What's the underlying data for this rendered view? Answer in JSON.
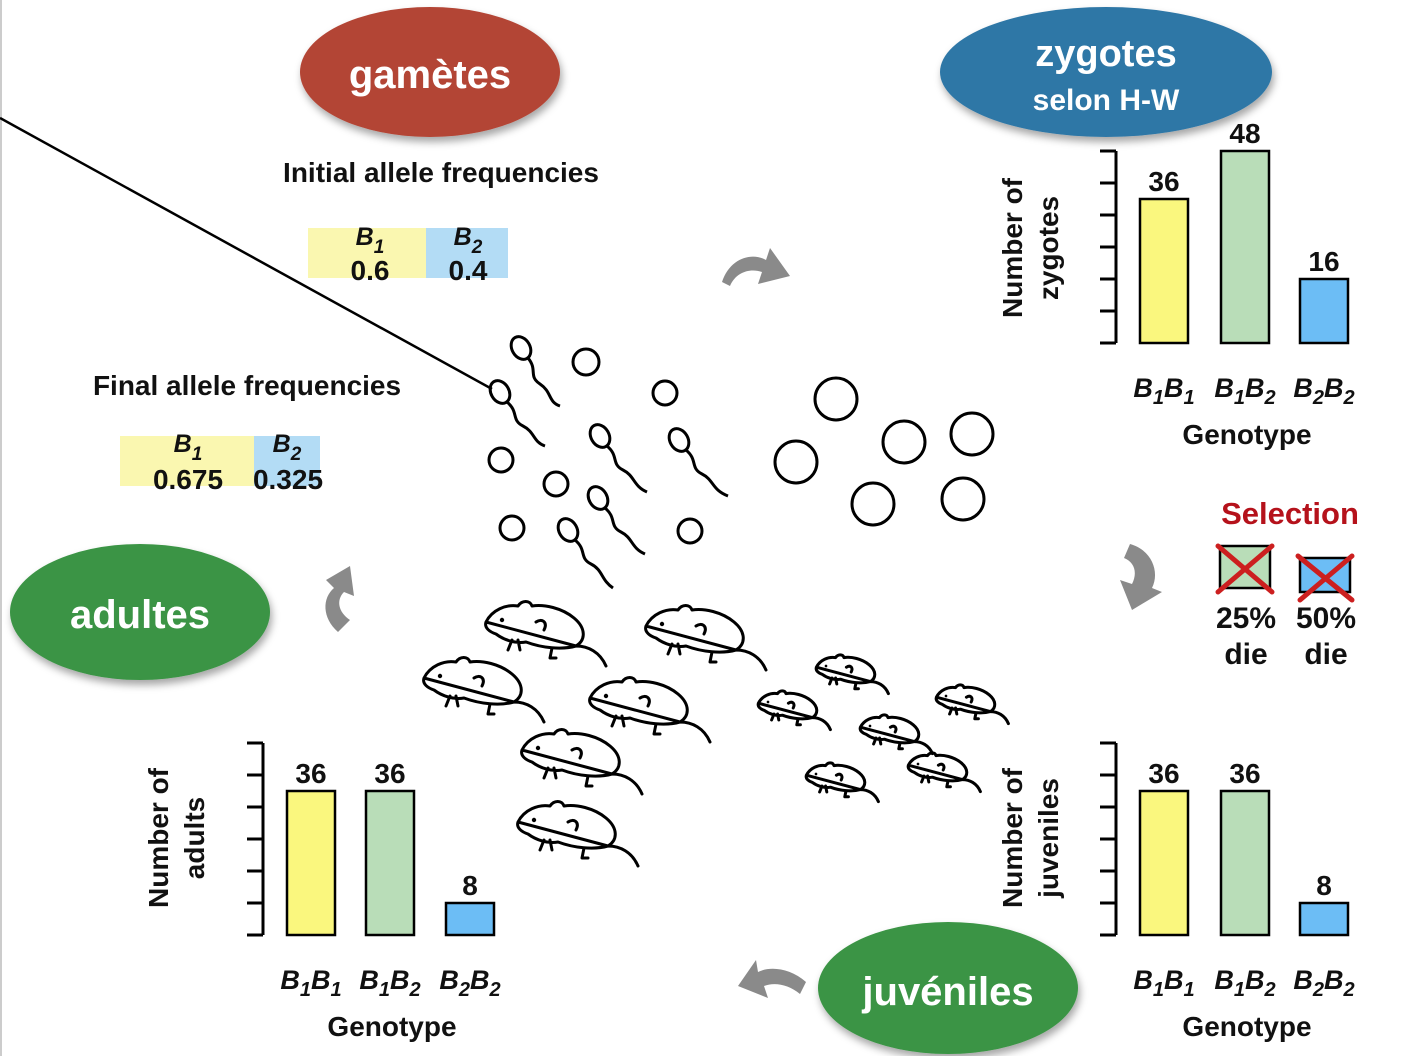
{
  "stages": {
    "gametes": "gamètes",
    "zygotes": "zygotes",
    "zygotes_sub": "selon H-W",
    "adults": "adultes",
    "juveniles": "juvéniles"
  },
  "initial_freq": {
    "title": "Initial allele frequencies",
    "b1_label": "B1",
    "b1_value": "0.6",
    "b2_label": "B2",
    "b2_value": "0.4"
  },
  "final_freq": {
    "title": "Final allele frequencies",
    "b1_label": "B1",
    "b1_value": "0.675",
    "b2_label": "B2",
    "b2_value": "0.325"
  },
  "selection": {
    "title": "Selection",
    "b1b2_caption_line1": "25%",
    "b1b2_caption_line2": "die",
    "b2b2_caption_line1": "50%",
    "b2b2_caption_line2": "die"
  },
  "colors": {
    "gametes": "#b34535",
    "zygotes": "#2f77a6",
    "adults": "#3a9444",
    "juveniles": "#3a9444",
    "b1b1": "#faf77e",
    "b1b2": "#b9ddb8",
    "b2b2": "#6cbdf5",
    "selection": "#b5121b",
    "arrow": "#8a8a8a",
    "b1_box": "#faf7b0",
    "b2_box": "#b3dcf5"
  },
  "chart_data": [
    {
      "type": "bar",
      "id": "zygotes",
      "ylabel_line1": "Number of",
      "ylabel_line2": "zygotes",
      "xlabel": "Genotype",
      "categories": [
        "B1B1",
        "B1B2",
        "B2B2"
      ],
      "values": [
        36,
        48,
        16
      ],
      "ylim": [
        0,
        48
      ]
    },
    {
      "type": "bar",
      "id": "juveniles",
      "ylabel_line1": "Number of",
      "ylabel_line2": "juveniles",
      "xlabel": "Genotype",
      "categories": [
        "B1B1",
        "B1B2",
        "B2B2"
      ],
      "values": [
        36,
        36,
        8
      ],
      "ylim": [
        0,
        48
      ]
    },
    {
      "type": "bar",
      "id": "adults",
      "ylabel_line1": "Number of",
      "ylabel_line2": "adults",
      "xlabel": "Genotype",
      "categories": [
        "B1B1",
        "B1B2",
        "B2B2"
      ],
      "values": [
        36,
        36,
        8
      ],
      "ylim": [
        0,
        48
      ]
    }
  ]
}
